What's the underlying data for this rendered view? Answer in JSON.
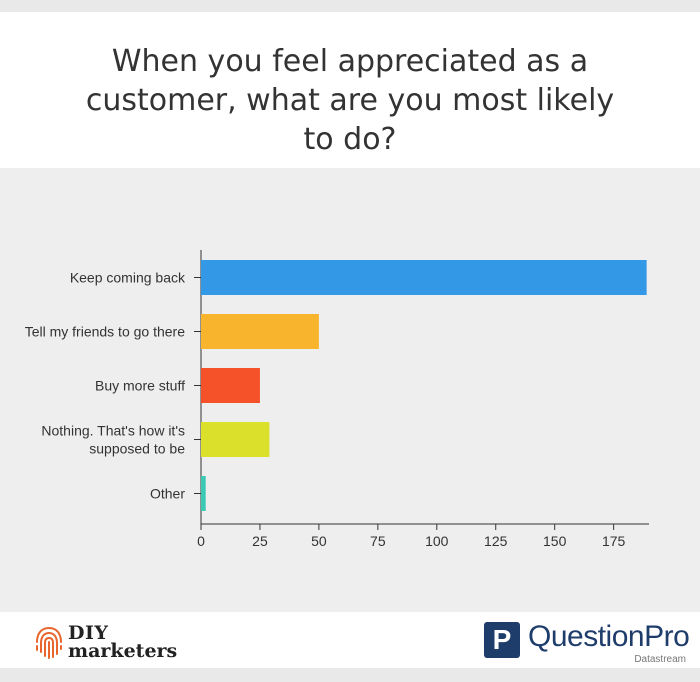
{
  "header": {
    "title": "When you feel appreciated as a customer, what are you most likely to do?"
  },
  "chart_data": {
    "type": "bar",
    "orientation": "horizontal",
    "title": "When you feel appreciated as a customer, what are you most likely to do?",
    "xlabel": "",
    "ylabel": "",
    "categories": [
      [
        "Keep coming back"
      ],
      [
        "Tell my friends to go there"
      ],
      [
        "Buy more stuff"
      ],
      [
        "Nothing. That's how it's",
        "supposed to be"
      ],
      [
        "Other"
      ]
    ],
    "values": [
      189,
      50,
      25,
      29,
      2
    ],
    "colors": [
      "#3399e6",
      "#f7b42c",
      "#f5522a",
      "#dbe02a",
      "#3cc9b4"
    ],
    "xlim": [
      0,
      190
    ],
    "xticks": [
      0,
      25,
      50,
      75,
      100,
      125,
      150,
      175
    ],
    "grid": false,
    "legend": "none"
  },
  "footer": {
    "left_logo_line1": "DIY",
    "left_logo_line2": "marketers",
    "right_logo_letter": "P",
    "right_logo_name": "QuestionPro",
    "right_logo_sub": "Datastream"
  },
  "colors": {
    "background": "#eeeeee",
    "title_bg": "#ffffff",
    "brand_navy": "#1f3d6b",
    "logo_orange": "#e8652b"
  }
}
